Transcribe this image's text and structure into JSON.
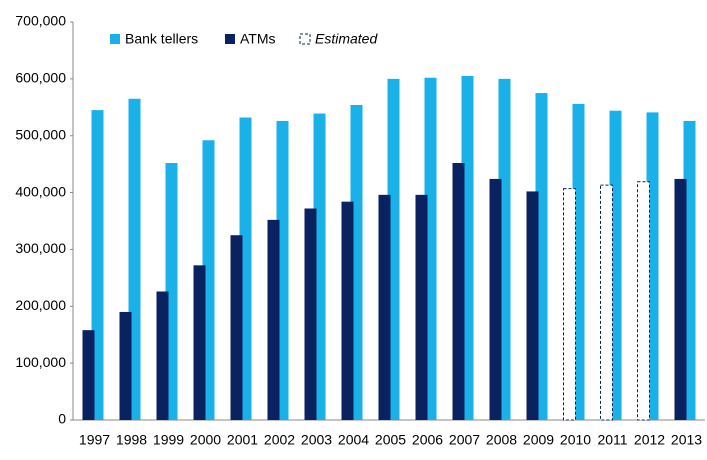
{
  "chart_data": {
    "type": "bar",
    "categories": [
      "1997",
      "1998",
      "1999",
      "2000",
      "2001",
      "2002",
      "2003",
      "2004",
      "2005",
      "2006",
      "2007",
      "2008",
      "2009",
      "2010",
      "2011",
      "2012",
      "2013"
    ],
    "series": [
      {
        "name": "Bank tellers",
        "color": "#1ab0e8",
        "values": [
          545000,
          565000,
          452000,
          492000,
          532000,
          526000,
          539000,
          554000,
          600000,
          602000,
          605000,
          600000,
          575000,
          556000,
          544000,
          541000,
          526000
        ]
      },
      {
        "name": "ATMs",
        "color": "#0b2260",
        "values": [
          158000,
          190000,
          226000,
          272000,
          325000,
          352000,
          372000,
          384000,
          396000,
          396000,
          452000,
          424000,
          402000,
          407000,
          413000,
          419000,
          424000
        ],
        "estimated": [
          false,
          false,
          false,
          false,
          false,
          false,
          false,
          false,
          false,
          false,
          false,
          false,
          false,
          true,
          true,
          true,
          false
        ]
      }
    ],
    "estimated_label": "Estimated",
    "ylim": [
      0,
      700000
    ],
    "yticks": [
      {
        "value": 0,
        "label": "0"
      },
      {
        "value": 100000,
        "label": "100,000"
      },
      {
        "value": 200000,
        "label": "200,000"
      },
      {
        "value": 300000,
        "label": "300,000"
      },
      {
        "value": 400000,
        "label": "400,000"
      },
      {
        "value": 500000,
        "label": "500,000"
      },
      {
        "value": 600000,
        "label": "600,000"
      },
      {
        "value": 700000,
        "label": "700,000"
      }
    ],
    "grid": false
  }
}
